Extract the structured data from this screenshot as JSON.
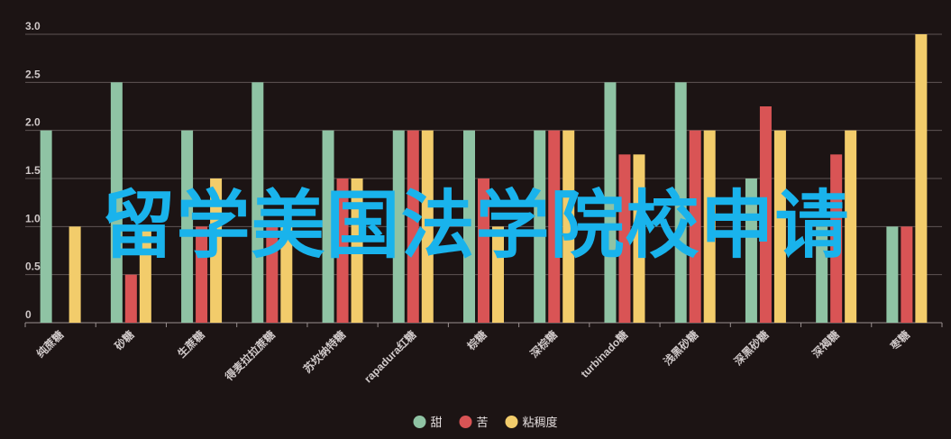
{
  "chart_data": {
    "type": "bar",
    "categories": [
      "纯蔗糖",
      "砂糖",
      "生蔗糖",
      "得麦拉拉蔗糖",
      "苏坎纳特糖",
      "rapadura红糖",
      "棕糖",
      "深棕糖",
      "turbinado糖",
      "浅黑砂糖",
      "深黑砂糖",
      "深褐糖",
      "枣糖"
    ],
    "series": [
      {
        "name": "甜",
        "color": "#8fc3a4",
        "values": [
          2.0,
          2.5,
          2.0,
          2.5,
          2.0,
          2.0,
          2.0,
          2.0,
          2.5,
          2.5,
          1.5,
          1.0,
          1.0
        ]
      },
      {
        "name": "苦",
        "color": "#d95455",
        "values": [
          0.0,
          0.5,
          1.0,
          1.0,
          1.5,
          2.0,
          1.5,
          2.0,
          1.75,
          2.0,
          2.25,
          1.75,
          1.0
        ]
      },
      {
        "name": "粘稠度",
        "color": "#f2cc6b",
        "values": [
          1.0,
          1.0,
          1.5,
          1.0,
          1.5,
          2.0,
          1.0,
          2.0,
          1.75,
          2.0,
          2.0,
          2.0,
          3.0
        ]
      }
    ],
    "yticks": [
      "0",
      "0.5",
      "1.0",
      "1.5",
      "2.0",
      "2.5",
      "3.0"
    ],
    "ylim": [
      0,
      3
    ],
    "grid": true,
    "legend": "bottom-center"
  },
  "watermark": "留学美国法学院校申请"
}
